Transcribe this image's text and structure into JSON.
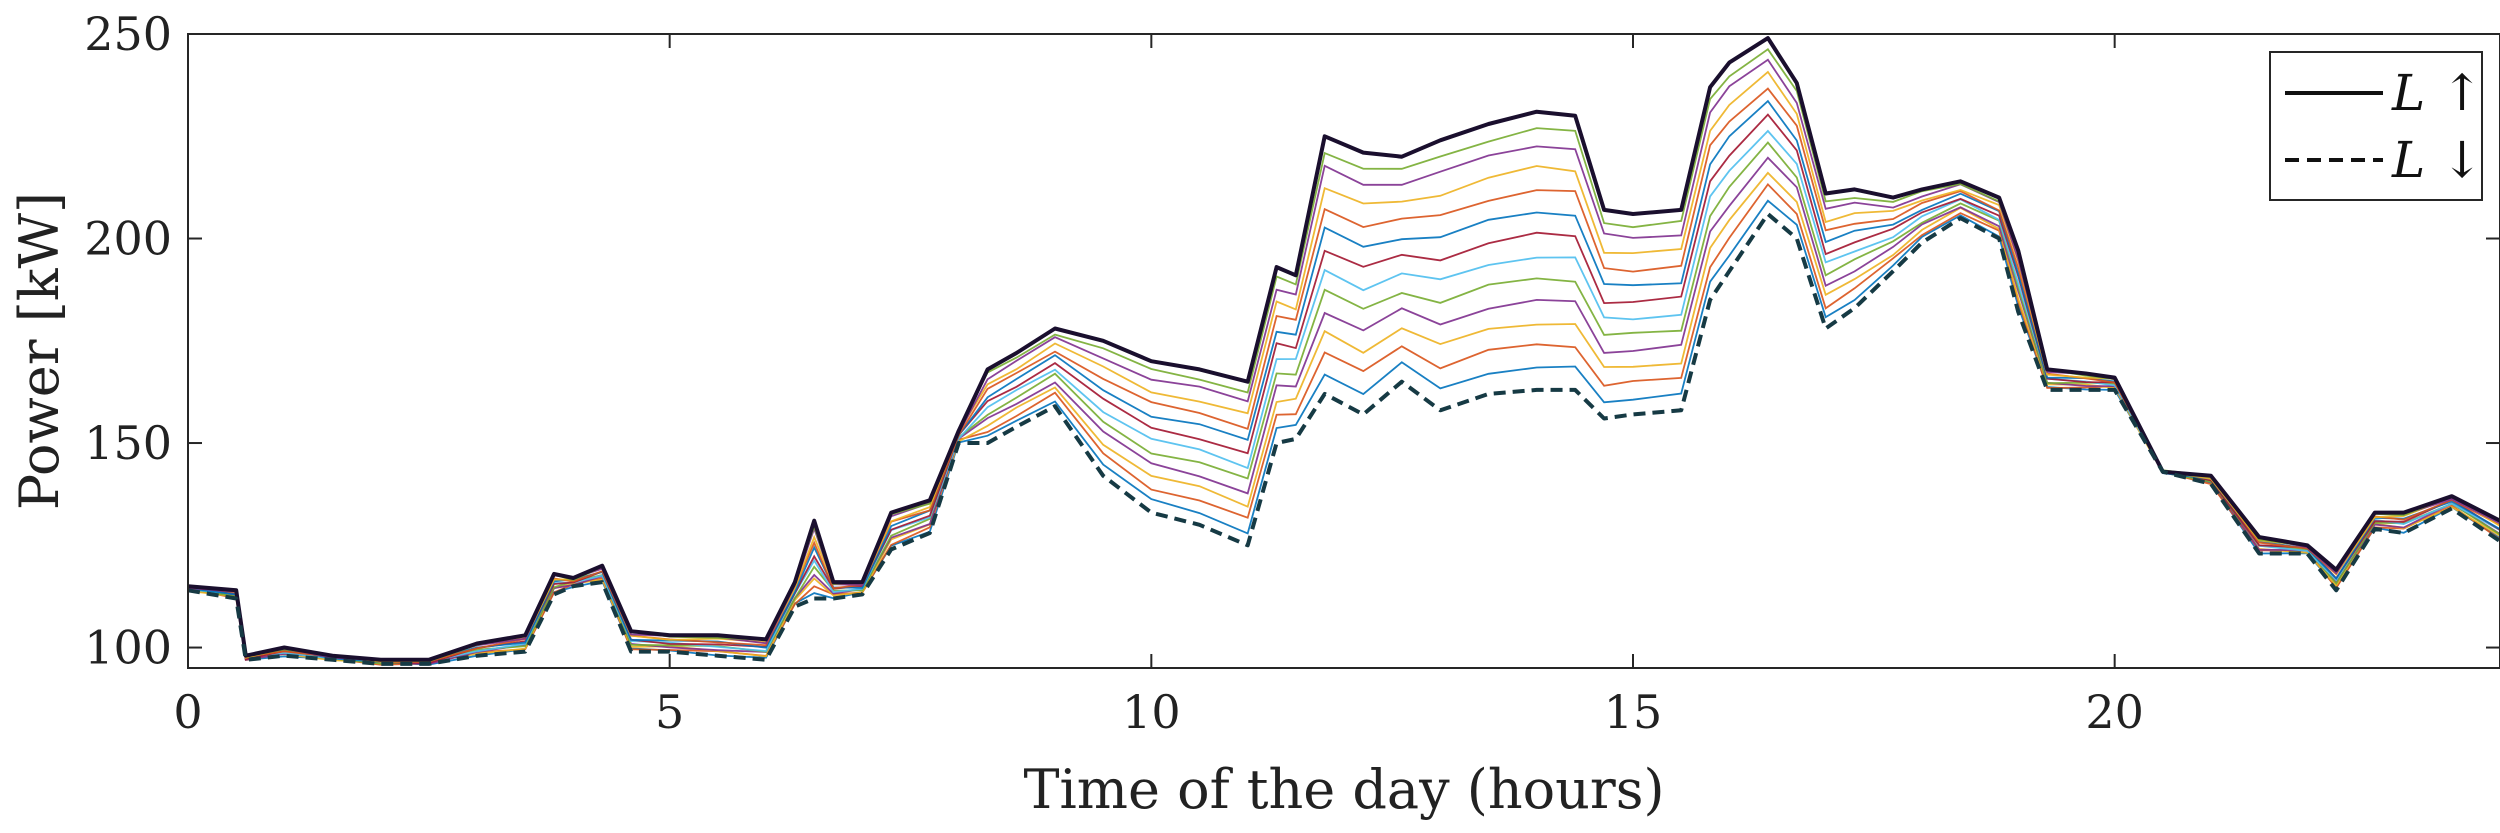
{
  "chart_data": {
    "type": "line",
    "title": "",
    "xlabel": "Time of the day (hours)",
    "ylabel": "Power [kW]",
    "xlim": [
      0,
      24
    ],
    "ylim": [
      95,
      250
    ],
    "xticks": [
      0,
      5,
      10,
      15,
      20
    ],
    "yticks": [
      100,
      150,
      200,
      250
    ],
    "grid": false,
    "legend_position": "top-right",
    "legend": [
      {
        "label": "L ↑",
        "style": "solid"
      },
      {
        "label": "L ↓",
        "style": "dashed"
      }
    ],
    "colors": {
      "upper": "#1a0f2e",
      "lower": "#163a44",
      "axis": "#262626",
      "palette": [
        "#0072BD",
        "#D95319",
        "#EDB120",
        "#7E2F8E",
        "#77AC30",
        "#4DBEEE",
        "#A2142F"
      ]
    },
    "x": [
      0,
      0.5,
      0.6,
      1,
      1.5,
      2,
      2.5,
      3,
      3.5,
      3.8,
      4,
      4.3,
      4.6,
      5,
      5.5,
      6,
      6.3,
      6.5,
      6.7,
      7,
      7.3,
      7.7,
      8,
      8.3,
      8.6,
      9,
      9.5,
      10,
      10.5,
      11,
      11.3,
      11.5,
      11.8,
      12.2,
      12.6,
      13,
      13.5,
      14,
      14.4,
      14.7,
      15,
      15.5,
      15.8,
      16,
      16.4,
      16.7,
      17,
      17.3,
      17.7,
      18,
      18.4,
      18.8,
      19,
      19.3,
      19.7,
      20,
      20.5,
      21,
      21.5,
      22,
      22.3,
      22.7,
      23,
      23.5,
      24
    ],
    "series": [
      {
        "name": "L ↑",
        "style": "solid",
        "values": [
          115,
          114,
          98,
          100,
          98,
          97,
          97,
          101,
          103,
          118,
          117,
          120,
          104,
          103,
          103,
          102,
          116,
          131,
          116,
          116,
          133,
          136,
          153,
          168,
          172,
          178,
          175,
          170,
          168,
          165,
          193,
          191,
          225,
          221,
          220,
          224,
          228,
          231,
          230,
          207,
          206,
          207,
          237,
          243,
          249,
          238,
          211,
          212,
          210,
          212,
          214,
          210,
          197,
          168,
          167,
          166,
          143,
          142,
          127,
          125,
          119,
          133,
          133,
          137,
          131
        ]
      },
      {
        "name": "L ↓",
        "style": "dashed",
        "values": [
          114,
          112,
          97,
          98,
          97,
          96,
          96,
          98,
          99,
          113,
          115,
          116,
          99,
          99,
          98,
          97,
          110,
          112,
          112,
          113,
          124,
          128,
          150,
          150,
          154,
          159,
          142,
          133,
          130,
          125,
          150,
          151,
          162,
          157,
          165,
          158,
          162,
          163,
          163,
          156,
          157,
          158,
          185,
          192,
          206,
          200,
          178,
          183,
          192,
          199,
          205,
          200,
          182,
          163,
          163,
          163,
          143,
          140,
          123,
          123,
          114,
          129,
          128,
          134,
          126
        ]
      }
    ]
  }
}
